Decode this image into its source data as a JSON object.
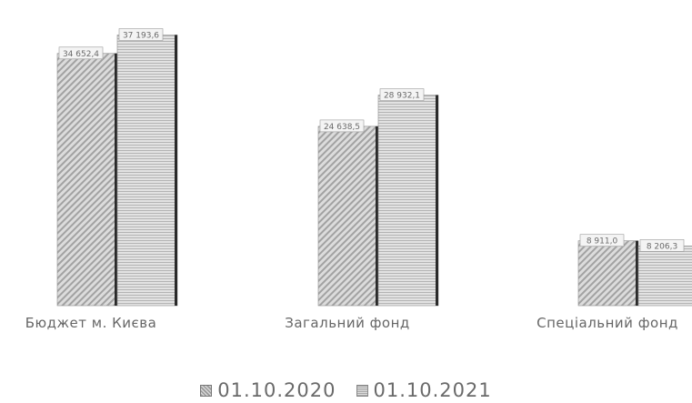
{
  "chart_data": {
    "type": "bar",
    "categories": [
      "Бюджет м. Києва",
      "Загальний фонд",
      "Спеціальний фонд"
    ],
    "series": [
      {
        "name": "01.10.2020",
        "values": [
          34652.4,
          24638.5,
          8911.0
        ],
        "labels": [
          "34 652,4",
          "24 638,5",
          "8 911,0"
        ]
      },
      {
        "name": "01.10.2021",
        "values": [
          37193.6,
          28932.1,
          8206.3
        ],
        "labels": [
          "37 193,6",
          "28 932,1",
          "8 206,3"
        ]
      }
    ],
    "ylim": [
      0,
      38000
    ],
    "grid": false,
    "legend": "bottom"
  }
}
